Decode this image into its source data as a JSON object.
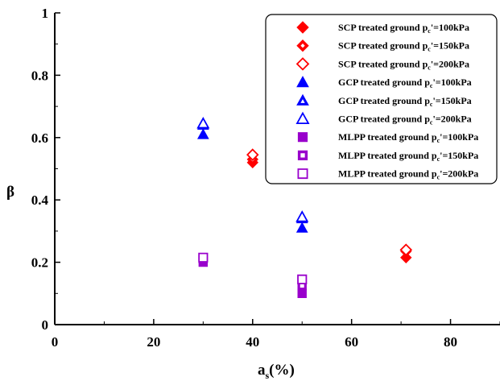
{
  "chart_data": {
    "type": "scatter",
    "title": "",
    "xlabel": "a",
    "xlabel_sub": "s",
    "xlabel_unit": "(%)",
    "ylabel": "β",
    "xlim": [
      0,
      90
    ],
    "ylim": [
      0,
      1
    ],
    "xticks": [
      0,
      20,
      40,
      60,
      80
    ],
    "yticks": [
      0,
      0.2,
      0.4,
      0.6,
      0.8,
      1
    ],
    "ytick_labels": [
      "0",
      "0.2",
      "0.4",
      "0.6",
      "0.8",
      "1"
    ],
    "grid": false,
    "legend_placement": "top-right",
    "series": [
      {
        "name": "SCP treated ground pc'=100kPa",
        "prefix": "SCP treated ground p",
        "sub": "c",
        "suffix": "'=100kPa",
        "marker": "diamond",
        "fill": "full",
        "color": "#ff0000",
        "points": [
          {
            "x": 40,
            "y": 0.52
          },
          {
            "x": 71,
            "y": 0.215
          }
        ]
      },
      {
        "name": "SCP treated ground pc'=150kPa",
        "prefix": "SCP treated ground p",
        "sub": "c",
        "suffix": "'=150kPa",
        "marker": "diamond",
        "fill": "dotted",
        "color": "#ff0000",
        "points": [
          {
            "x": 40,
            "y": 0.53
          },
          {
            "x": 71,
            "y": 0.235
          }
        ]
      },
      {
        "name": "SCP treated ground pc'=200kPa",
        "prefix": "SCP treated ground p",
        "sub": "c",
        "suffix": "'=200kPa",
        "marker": "diamond",
        "fill": "open",
        "color": "#ff0000",
        "points": [
          {
            "x": 40,
            "y": 0.545
          },
          {
            "x": 71,
            "y": 0.24
          }
        ]
      },
      {
        "name": "GCP treated ground pc'=100kPa",
        "prefix": "GCP treated ground p",
        "sub": "c",
        "suffix": "'=100kPa",
        "marker": "triangle",
        "fill": "full",
        "color": "#0000ff",
        "points": [
          {
            "x": 30,
            "y": 0.61
          },
          {
            "x": 50,
            "y": 0.31
          }
        ]
      },
      {
        "name": "GCP treated ground pc'=150kPa",
        "prefix": "GCP treated ground p",
        "sub": "c",
        "suffix": "'=150kPa",
        "marker": "triangle",
        "fill": "dotted",
        "color": "#0000ff",
        "points": [
          {
            "x": 30,
            "y": 0.64
          },
          {
            "x": 50,
            "y": 0.34
          }
        ]
      },
      {
        "name": "GCP treated ground pc'=200kPa",
        "prefix": "GCP treated ground p",
        "sub": "c",
        "suffix": "'=200kPa",
        "marker": "triangle",
        "fill": "open",
        "color": "#0000ff",
        "points": [
          {
            "x": 30,
            "y": 0.645
          },
          {
            "x": 50,
            "y": 0.345
          }
        ]
      },
      {
        "name": "MLPP treated ground pc'=100kPa",
        "prefix": "MLPP treated ground p",
        "sub": "c",
        "suffix": "'=100kPa",
        "marker": "square",
        "fill": "full",
        "color": "#9900cc",
        "points": [
          {
            "x": 30,
            "y": 0.2
          },
          {
            "x": 50,
            "y": 0.1
          }
        ]
      },
      {
        "name": "MLPP treated ground pc'=150kPa",
        "prefix": "MLPP treated ground p",
        "sub": "c",
        "suffix": "'=150kPa",
        "marker": "square",
        "fill": "dotted",
        "color": "#9900cc",
        "points": [
          {
            "x": 30,
            "y": 0.21
          },
          {
            "x": 50,
            "y": 0.125
          }
        ]
      },
      {
        "name": "MLPP treated ground pc'=200kPa",
        "prefix": "MLPP treated ground p",
        "sub": "c",
        "suffix": "'=200kPa",
        "marker": "square",
        "fill": "open",
        "color": "#9900cc",
        "points": [
          {
            "x": 30,
            "y": 0.215
          },
          {
            "x": 50,
            "y": 0.145
          }
        ]
      }
    ]
  }
}
